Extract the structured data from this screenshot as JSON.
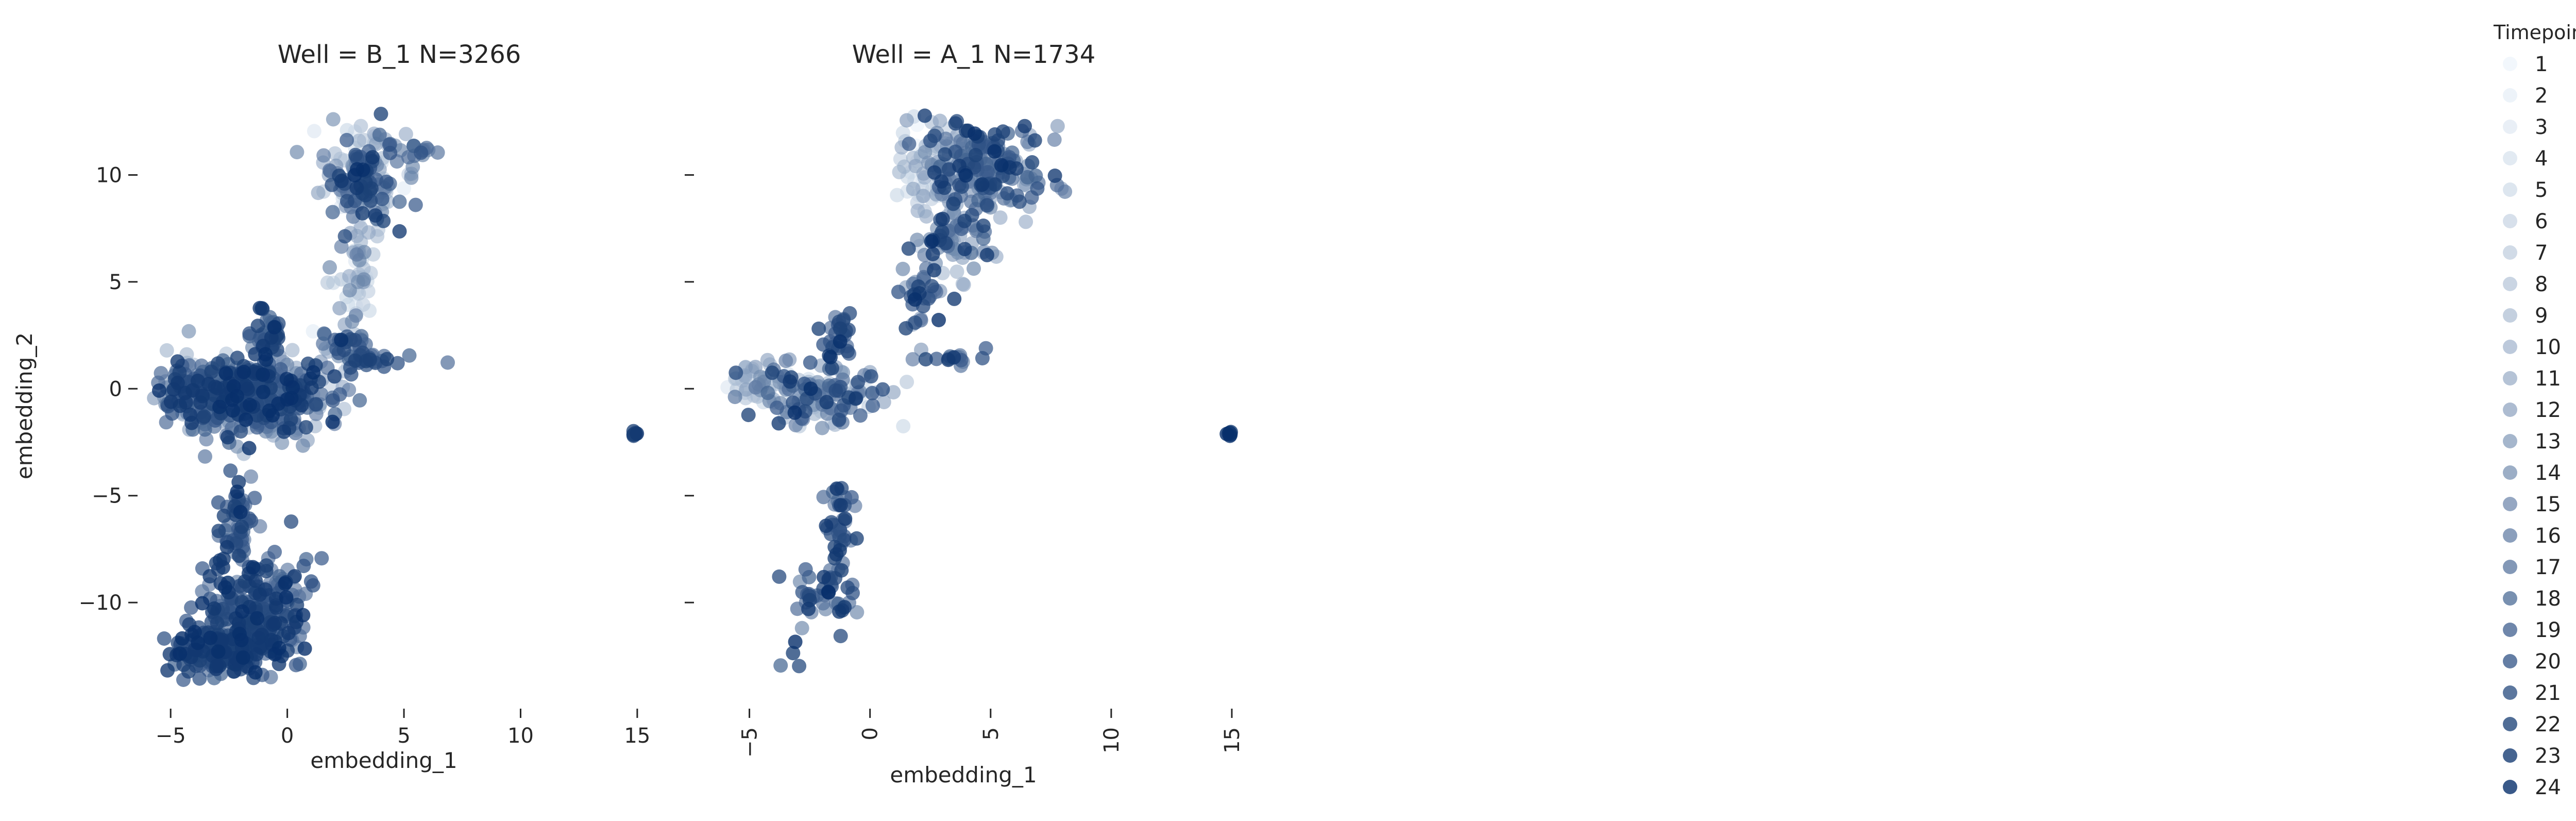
{
  "chart_data": [
    {
      "type": "scatter",
      "title": "Well = B_1 N=3266",
      "xlabel": "embedding_1",
      "ylabel": "embedding_2",
      "xlim": [
        -5.8,
        15.4
      ],
      "ylim": [
        -14.6,
        13.0
      ],
      "xticks": [
        -5,
        0,
        5,
        10,
        15
      ],
      "yticks": [
        10,
        5,
        0,
        -5,
        -10
      ],
      "xtick_rotation": 0,
      "clusters": [
        {
          "cx": 3.2,
          "cy": 9.8,
          "sx": 0.8,
          "sy": 1.1,
          "n": 180,
          "tmin": 1,
          "tmax": 24
        },
        {
          "cx": 5.3,
          "cy": 11.1,
          "sx": 0.5,
          "sy": 0.3,
          "n": 10,
          "tmin": 12,
          "tmax": 20
        },
        {
          "cx": 6.1,
          "cy": 11.3,
          "sx": 0.2,
          "sy": 0.2,
          "n": 5,
          "tmin": 14,
          "tmax": 18
        },
        {
          "cx": 2.8,
          "cy": 5.0,
          "sx": 0.5,
          "sy": 1.5,
          "n": 50,
          "tmin": 1,
          "tmax": 16
        },
        {
          "cx": 2.2,
          "cy": 1.8,
          "sx": 0.5,
          "sy": 0.7,
          "n": 30,
          "tmin": 8,
          "tmax": 24
        },
        {
          "cx": 3.6,
          "cy": 1.3,
          "sx": 1.0,
          "sy": 0.2,
          "n": 24,
          "tmin": 14,
          "tmax": 24
        },
        {
          "cx": -1.0,
          "cy": 2.5,
          "sx": 0.4,
          "sy": 0.6,
          "n": 40,
          "tmin": 16,
          "tmax": 24
        },
        {
          "cx": -1.6,
          "cy": -0.3,
          "sx": 1.7,
          "sy": 0.85,
          "n": 520,
          "tmin": 6,
          "tmax": 24
        },
        {
          "cx": -4.3,
          "cy": -0.1,
          "sx": 0.7,
          "sy": 0.5,
          "n": 80,
          "tmin": 10,
          "tmax": 24
        },
        {
          "cx": -2.0,
          "cy": -6.3,
          "sx": 0.4,
          "sy": 1.1,
          "n": 50,
          "tmin": 14,
          "tmax": 24
        },
        {
          "cx": -1.3,
          "cy": -10.3,
          "sx": 1.1,
          "sy": 1.2,
          "n": 220,
          "tmin": 14,
          "tmax": 24
        },
        {
          "cx": -2.7,
          "cy": -12.2,
          "sx": 1.1,
          "sy": 0.7,
          "n": 180,
          "tmin": 18,
          "tmax": 24
        },
        {
          "cx": 14.9,
          "cy": -2.1,
          "sx": 0.05,
          "sy": 0.08,
          "n": 8,
          "tmin": 20,
          "tmax": 24
        }
      ]
    },
    {
      "type": "scatter",
      "title": "Well = A_1 N=1734",
      "xlabel": "embedding_1",
      "ylabel": "",
      "xlim": [
        -6.7,
        15.3
      ],
      "ylim": [
        -14.6,
        13.0
      ],
      "xticks": [
        -5,
        0,
        5,
        10,
        15
      ],
      "yticks": [
        10,
        5,
        0,
        -5,
        -10
      ],
      "xtick_rotation": -90,
      "clusters": [
        {
          "cx": 4.8,
          "cy": 10.2,
          "sx": 1.2,
          "sy": 1.2,
          "n": 180,
          "tmin": 10,
          "tmax": 24
        },
        {
          "cx": 2.6,
          "cy": 10.3,
          "sx": 0.7,
          "sy": 1.3,
          "n": 80,
          "tmin": 1,
          "tmax": 12
        },
        {
          "cx": 3.4,
          "cy": 7.0,
          "sx": 0.8,
          "sy": 1.0,
          "n": 70,
          "tmin": 8,
          "tmax": 24
        },
        {
          "cx": 2.2,
          "cy": 4.2,
          "sx": 0.4,
          "sy": 0.8,
          "n": 30,
          "tmin": 10,
          "tmax": 24
        },
        {
          "cx": 3.6,
          "cy": 1.4,
          "sx": 1.0,
          "sy": 0.15,
          "n": 15,
          "tmin": 14,
          "tmax": 24
        },
        {
          "cx": -1.2,
          "cy": 2.6,
          "sx": 0.4,
          "sy": 0.7,
          "n": 25,
          "tmin": 16,
          "tmax": 24
        },
        {
          "cx": -2.2,
          "cy": -0.3,
          "sx": 1.5,
          "sy": 0.7,
          "n": 150,
          "tmin": 4,
          "tmax": 24
        },
        {
          "cx": -4.8,
          "cy": 0.3,
          "sx": 0.6,
          "sy": 0.5,
          "n": 30,
          "tmin": 1,
          "tmax": 14
        },
        {
          "cx": -1.2,
          "cy": -6.3,
          "sx": 0.3,
          "sy": 1.2,
          "n": 40,
          "tmin": 14,
          "tmax": 24
        },
        {
          "cx": -2.0,
          "cy": -9.5,
          "sx": 0.6,
          "sy": 0.8,
          "n": 40,
          "tmin": 14,
          "tmax": 24
        },
        {
          "cx": -3.2,
          "cy": -12.5,
          "sx": 0.4,
          "sy": 0.4,
          "n": 4,
          "tmin": 18,
          "tmax": 24
        },
        {
          "cx": 14.9,
          "cy": -2.1,
          "sx": 0.05,
          "sy": 0.08,
          "n": 8,
          "tmin": 20,
          "tmax": 24
        }
      ]
    }
  ],
  "legend": {
    "title": "Timepoint",
    "entries": [
      "1",
      "2",
      "3",
      "4",
      "5",
      "6",
      "7",
      "8",
      "9",
      "10",
      "11",
      "12",
      "13",
      "14",
      "15",
      "16",
      "17",
      "18",
      "19",
      "20",
      "21",
      "22",
      "23",
      "24"
    ],
    "placement": "right",
    "colormap": "Blues",
    "color_light": "#e3eef8",
    "color_dark": "#08306b"
  }
}
